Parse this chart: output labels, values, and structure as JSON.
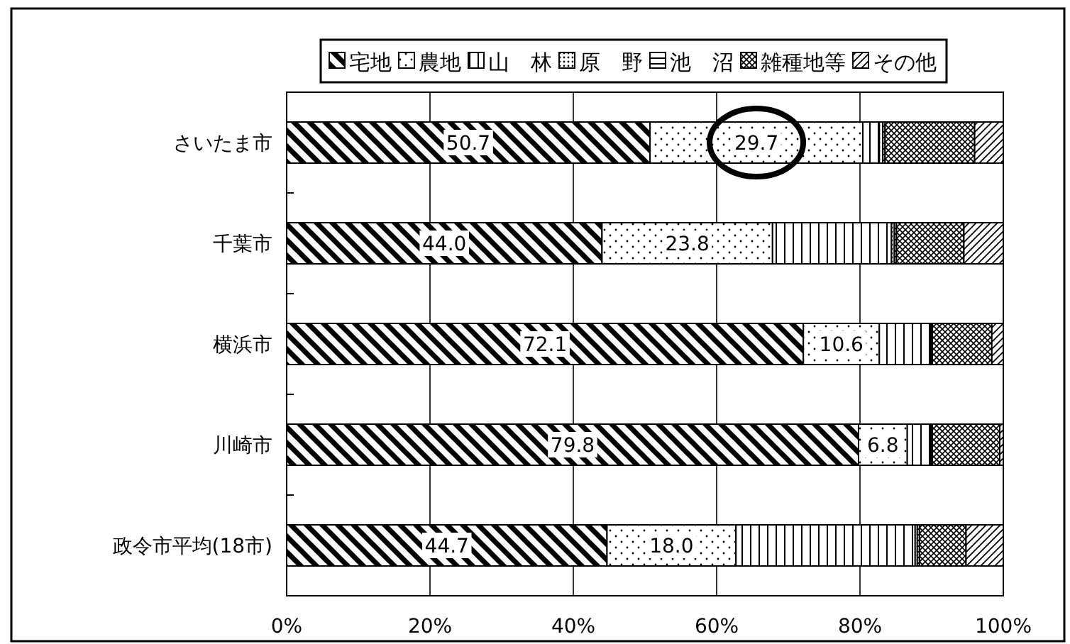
{
  "chart_data": {
    "type": "bar",
    "orientation": "horizontal",
    "stacked": true,
    "categories": [
      "さいたま市",
      "千葉市",
      "横浜市",
      "川崎市",
      "政令市平均(18市)"
    ],
    "series": [
      {
        "name": "宅地",
        "color": "#000000",
        "values": [
          50.7,
          44.0,
          72.1,
          79.8,
          44.7
        ],
        "value_labels": [
          "50.7",
          "44.0",
          "72.1",
          "79.8",
          "44.7"
        ]
      },
      {
        "name": "農地",
        "color": "#000000",
        "values": [
          29.7,
          23.8,
          10.6,
          6.8,
          18.0
        ],
        "value_labels": [
          "29.7",
          "23.8",
          "10.6",
          "6.8",
          "18.0"
        ]
      },
      {
        "name": "山　林",
        "color": "#000000",
        "values": [
          2.3,
          16.6,
          7.1,
          3.3,
          25.0
        ]
      },
      {
        "name": "原　野",
        "color": "#000000",
        "values": [
          0.5,
          0.4,
          0.1,
          0.1,
          0.3
        ]
      },
      {
        "name": "池　沼",
        "color": "#000000",
        "values": [
          0.3,
          0.3,
          0.2,
          0.1,
          0.3
        ]
      },
      {
        "name": "雑種地等",
        "color": "#000000",
        "values": [
          12.5,
          9.4,
          8.3,
          9.4,
          6.5
        ]
      },
      {
        "name": "その他",
        "color": "#000000",
        "values": [
          4.0,
          5.5,
          1.6,
          0.5,
          5.2
        ]
      }
    ],
    "xlim": [
      0,
      100
    ],
    "xticks": [
      {
        "value": 0,
        "label": "0%"
      },
      {
        "value": 20,
        "label": "20%"
      },
      {
        "value": 40,
        "label": "40%"
      },
      {
        "value": 60,
        "label": "60%"
      },
      {
        "value": 80,
        "label": "80%"
      },
      {
        "value": 100,
        "label": "100%"
      }
    ],
    "grid": "x",
    "legend": "top"
  }
}
